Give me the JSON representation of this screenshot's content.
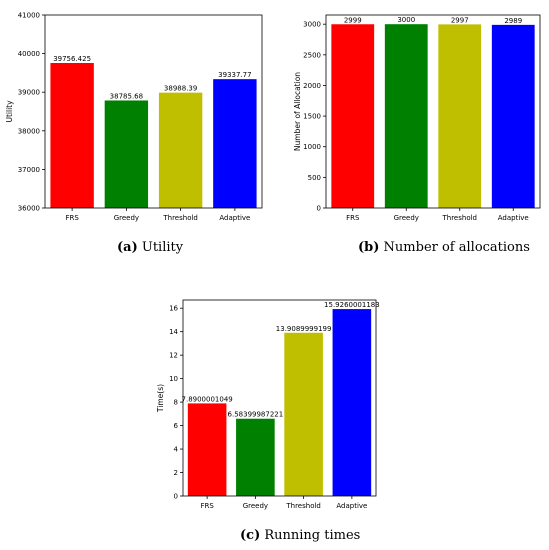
{
  "chart_data": [
    {
      "id": "a",
      "type": "bar",
      "categories": [
        "FRS",
        "Greedy",
        "Threshold",
        "Adaptive"
      ],
      "values": [
        39756.425,
        38785.68,
        38988.39,
        39337.77
      ],
      "data_labels": [
        "39756.425",
        "38785.68",
        "38988.39",
        "39337.77"
      ],
      "colors": [
        "#ff0000",
        "#008000",
        "#bfbf00",
        "#0000ff"
      ],
      "ylabel": "Utility",
      "xlabel": "",
      "ylim": [
        36000,
        41000
      ],
      "yticks": [
        36000,
        37000,
        38000,
        39000,
        40000,
        41000
      ],
      "grid": false
    },
    {
      "id": "b",
      "type": "bar",
      "categories": [
        "FRS",
        "Greedy",
        "Threshold",
        "Adaptive"
      ],
      "values": [
        2999,
        3000,
        2997,
        2989
      ],
      "data_labels": [
        "2999",
        "3000",
        "2997",
        "2989"
      ],
      "colors": [
        "#ff0000",
        "#008000",
        "#bfbf00",
        "#0000ff"
      ],
      "ylabel": "Number of Allocation",
      "xlabel": "",
      "ylim": [
        0,
        3150
      ],
      "yticks": [
        0,
        500,
        1000,
        1500,
        2000,
        2500,
        3000
      ],
      "grid": false
    },
    {
      "id": "c",
      "type": "bar",
      "categories": [
        "FRS",
        "Greedy",
        "Threshold",
        "Adaptive"
      ],
      "values": [
        7.8900001049,
        6.58399987221,
        13.9089999199,
        15.9260001183
      ],
      "data_labels": [
        "7.8900001049",
        "6.58399987221",
        "13.9089999199",
        "15.9260001183"
      ],
      "colors": [
        "#ff0000",
        "#008000",
        "#bfbf00",
        "#0000ff"
      ],
      "ylabel": "Time(s)",
      "xlabel": "",
      "ylim": [
        0,
        16.7
      ],
      "yticks": [
        0,
        2,
        4,
        6,
        8,
        10,
        12,
        14,
        16
      ],
      "grid": false
    }
  ],
  "captions": {
    "a": {
      "tag": "(a)",
      "text": "Utility"
    },
    "b": {
      "tag": "(b)",
      "text": "Number of allocations"
    },
    "c": {
      "tag": "(c)",
      "text": "Running times"
    }
  }
}
